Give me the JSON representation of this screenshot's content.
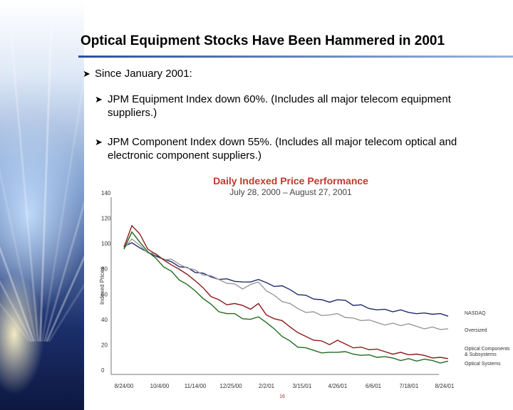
{
  "slide": {
    "title": "Optical Equipment Stocks Have Been Hammered in 2001",
    "bullets": [
      {
        "text": "Since January 2001:"
      },
      {
        "text": "JPM Equipment Index down 60%. (Includes all major telecom equipment suppliers.)"
      },
      {
        "text": "JPM Component Index down 55%. (Includes all major telecom optical and electronic component suppliers.)"
      }
    ],
    "bullet_glyph": "arrow-bullet-icon",
    "page_marker": "16"
  },
  "colors": {
    "nasdaq": "#1f2a6b",
    "oversized": "#9a9a9a",
    "components": "#8b1a1a",
    "systems": "#1e6b1e",
    "title_red": "#c0392b",
    "rule": "#2b4fa0"
  },
  "chart_data": {
    "type": "line",
    "title": "Daily Indexed Price Performance",
    "subtitle": "July 28, 2000 – August 27, 2001",
    "ylabel": "Indexed Prices",
    "xlabel": "",
    "ylim": [
      0,
      140
    ],
    "yticks": [
      "0",
      "20",
      "40",
      "60",
      "80",
      "100",
      "120",
      "140"
    ],
    "xticks": [
      "8/24/00",
      "10/4/00",
      "11/14/00",
      "12/25/00",
      "2/2/01",
      "3/15/01",
      "4/26/01",
      "6/6/01",
      "7/18/01",
      "8/24/01"
    ],
    "grid": false,
    "legend_position": "right-end-labels",
    "series": [
      {
        "name": "NASDAQ",
        "color_key": "nasdaq",
        "values": [
          100,
          104,
          101,
          96,
          94,
          90,
          89,
          86,
          84,
          81,
          79,
          77,
          76,
          75,
          74,
          72,
          73,
          76,
          72,
          70,
          69,
          67,
          64,
          62,
          60,
          58,
          57,
          60,
          58,
          55,
          54,
          52,
          52,
          51,
          50,
          50,
          49,
          49,
          48,
          48,
          47,
          46
        ]
      },
      {
        "name": "Oversized",
        "color_key": "oversized",
        "values": [
          100,
          106,
          102,
          97,
          95,
          91,
          90,
          87,
          85,
          82,
          79,
          77,
          75,
          73,
          71,
          68,
          70,
          73,
          67,
          62,
          58,
          55,
          52,
          50,
          49,
          47,
          46,
          48,
          46,
          44,
          43,
          42,
          41,
          40,
          40,
          39,
          39,
          38,
          37,
          37,
          36,
          35
        ]
      },
      {
        "name": "Optical Components & Subsystems",
        "color_key": "components",
        "values": [
          100,
          118,
          110,
          99,
          96,
          90,
          87,
          82,
          79,
          75,
          68,
          62,
          58,
          55,
          57,
          54,
          52,
          55,
          47,
          45,
          42,
          38,
          32,
          30,
          28,
          26,
          24,
          26,
          24,
          22,
          21,
          20,
          19,
          18,
          17,
          17,
          16,
          15,
          15,
          14,
          13,
          13
        ]
      },
      {
        "name": "Optical Systems",
        "color_key": "systems",
        "values": [
          100,
          112,
          105,
          96,
          92,
          86,
          81,
          75,
          70,
          66,
          61,
          55,
          50,
          47,
          48,
          45,
          43,
          46,
          40,
          36,
          31,
          26,
          22,
          20,
          19,
          18,
          17,
          18,
          17,
          16,
          16,
          15,
          14,
          13,
          13,
          12,
          12,
          11,
          11,
          11,
          10,
          10
        ]
      }
    ],
    "end_labels": [
      "NASDAQ",
      "Oversized",
      "Optical Components & Subsystems",
      "Optical Systems"
    ]
  }
}
